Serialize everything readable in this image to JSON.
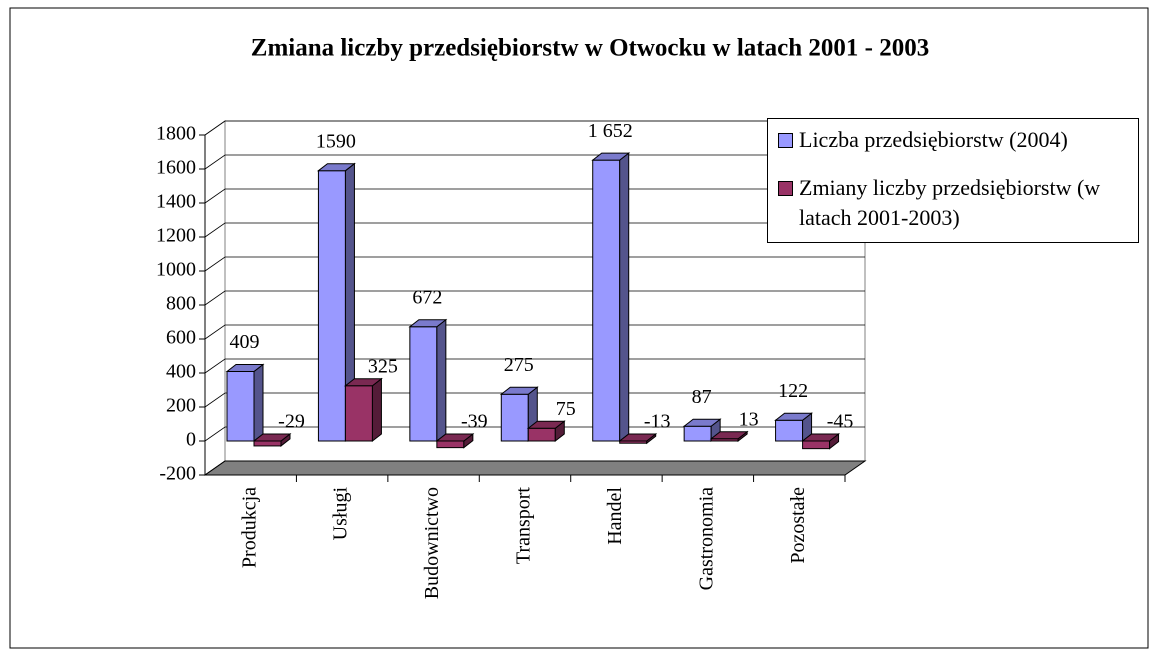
{
  "chart_data": {
    "type": "bar3d",
    "title": "Zmiana liczby przedsiębiorstw w Otwocku w latach 2001 - 2003",
    "categories": [
      "Produkcja",
      "Usługi",
      "Budownictwo",
      "Transport",
      "Handel",
      "Gastronomia",
      "Pozostałe"
    ],
    "series": [
      {
        "name": "Liczba przedsiębiorstw (2004)",
        "color": "#9999ff",
        "values": [
          409,
          1590,
          672,
          275,
          1652,
          87,
          122
        ],
        "value_labels": [
          "409",
          "1590",
          "672",
          "275",
          "1 652",
          "87",
          "122"
        ]
      },
      {
        "name": "Zmiany liczby przedsiębiorstw (w latach 2001-2003)",
        "color": "#993366",
        "values": [
          -29,
          325,
          -39,
          75,
          -13,
          13,
          -45
        ]
      }
    ],
    "ylim": [
      -200,
      1800
    ],
    "yticks": [
      -200,
      0,
      200,
      400,
      600,
      800,
      1000,
      1200,
      1400,
      1600,
      1800
    ],
    "grid": true,
    "legend": "top-right"
  }
}
